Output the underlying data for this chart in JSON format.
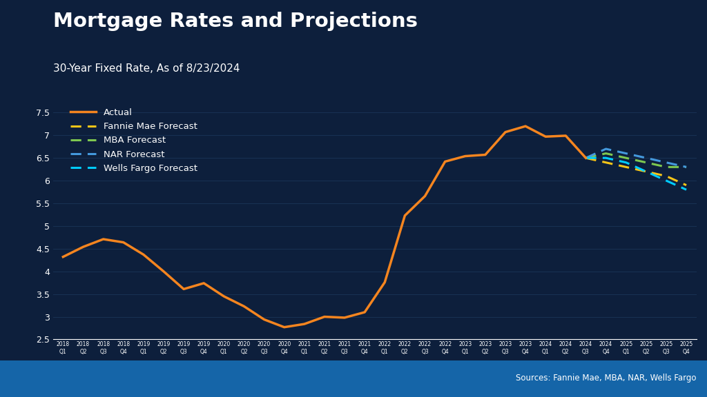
{
  "title": "Mortgage Rates and Projections",
  "subtitle": "30-Year Fixed Rate, As of 8/23/2024",
  "source": "Sources: Fannie Mae, MBA, NAR, Wells Fargo",
  "background_color": "#0d1f3c",
  "plot_background_color": "#0d1f3c",
  "text_color": "#ffffff",
  "grid_color": "#1e3a5f",
  "ylim": [
    2.5,
    7.75
  ],
  "yticks": [
    2.5,
    3.0,
    3.5,
    4.0,
    4.5,
    5.0,
    5.5,
    6.0,
    6.5,
    7.0,
    7.5
  ],
  "actual_color": "#f5851f",
  "fannie_mae_color": "#f5c518",
  "mba_color": "#7ec850",
  "nar_color": "#4499dd",
  "wells_fargo_color": "#00ccff",
  "bottom_bar_color": "#1565a8",
  "actual_data": {
    "labels": [
      "2018Q1",
      "2018Q2",
      "2018Q3",
      "2018Q4",
      "2019Q1",
      "2019Q2",
      "2019Q3",
      "2019Q4",
      "2020Q1",
      "2020Q2",
      "2020Q3",
      "2020Q4",
      "2021Q1",
      "2021Q2",
      "2021Q3",
      "2021Q4",
      "2022Q1",
      "2022Q2",
      "2022Q3",
      "2022Q4",
      "2023Q1",
      "2023Q2",
      "2023Q3",
      "2023Q4",
      "2024Q1",
      "2024Q2",
      "2024Q3"
    ],
    "values": [
      4.32,
      4.54,
      4.71,
      4.64,
      4.37,
      4.0,
      3.61,
      3.74,
      3.45,
      3.23,
      2.94,
      2.77,
      2.84,
      3.0,
      2.98,
      3.1,
      3.76,
      5.23,
      5.66,
      6.42,
      6.54,
      6.57,
      7.07,
      7.2,
      6.97,
      6.99,
      6.5
    ]
  },
  "fannie_mae_data": {
    "labels": [
      "2024Q3",
      "2024Q4",
      "2025Q1",
      "2025Q2",
      "2025Q3",
      "2025Q4"
    ],
    "values": [
      6.5,
      6.4,
      6.3,
      6.2,
      6.1,
      5.9
    ]
  },
  "mba_data": {
    "labels": [
      "2024Q3",
      "2024Q4",
      "2025Q1",
      "2025Q2",
      "2025Q3",
      "2025Q4"
    ],
    "values": [
      6.5,
      6.6,
      6.5,
      6.4,
      6.3,
      6.3
    ]
  },
  "nar_data": {
    "labels": [
      "2024Q3",
      "2024Q4",
      "2025Q1",
      "2025Q2",
      "2025Q3",
      "2025Q4"
    ],
    "values": [
      6.5,
      6.7,
      6.6,
      6.5,
      6.4,
      6.3
    ]
  },
  "wells_fargo_data": {
    "labels": [
      "2024Q3",
      "2024Q4",
      "2025Q1",
      "2025Q2",
      "2025Q3",
      "2025Q4"
    ],
    "values": [
      6.5,
      6.5,
      6.4,
      6.2,
      6.0,
      5.8
    ]
  }
}
